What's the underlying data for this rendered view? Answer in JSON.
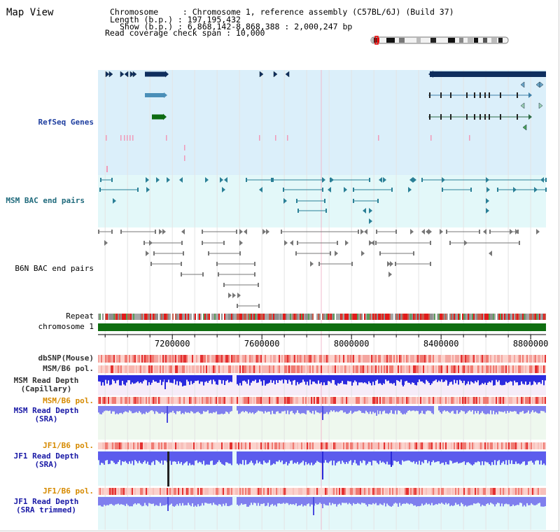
{
  "header": {
    "title": "Map View",
    "info_lines": [
      "Chromosome     : Chromosome 1, reference assembly (C57BL/6J) (Build 37)",
      "Length (b.p.) : 197,195,432",
      "Show (b.p.) : 6,868,142-8,868,388 : 2,000,247 bp",
      "Read coverage check span : 10,000"
    ]
  },
  "view": {
    "start": 6868142,
    "end": 8868388
  },
  "tracks": {
    "refseq": "RefSeq Genes",
    "msm_bac": "MSM BAC end pairs",
    "b6n_bac": "B6N BAC end pairs",
    "repeat": "Repeat",
    "chromosome": "chromosome 1",
    "dbsnp": "dbSNP(Mouse)",
    "msm_pol_1": "MSM/B6 pol.",
    "msm_depth_cap": [
      "MSM Read Depth",
      "(Capillary)"
    ],
    "msm_pol_2": "MSM/B6 pol.",
    "msm_depth_sra": [
      "MSM Read Depth",
      "(SRA)"
    ],
    "jf1_pol_1": "JF1/B6 pol.",
    "jf1_depth_sra": [
      "JF1 Read Depth",
      "(SRA)"
    ],
    "jf1_pol_2": "JF1/B6 pol.",
    "jf1_depth_trim": [
      "JF1 Read Depth",
      "(SRA trimmed)"
    ]
  },
  "axis": {
    "ticks": [
      "7200000",
      "7600000",
      "8000000",
      "8400000",
      "8800000"
    ],
    "tick_values": [
      7200000,
      7600000,
      8000000,
      8400000,
      8800000
    ]
  },
  "colors": {
    "refseq_bg": "#dbeffa",
    "msm_bg": "#e3f8f9",
    "gene_dark": "#0f2e5e",
    "gene_mid": "#4a8fb8",
    "gene_green": "#0d6b12",
    "bac_msm": "#2a7f96",
    "bac_b6n": "#777777",
    "chromosome": "#0f6e10",
    "depth_blue": "#2b2bde",
    "depth_light": "#7f7fee",
    "pol_red": "#e43030"
  }
}
